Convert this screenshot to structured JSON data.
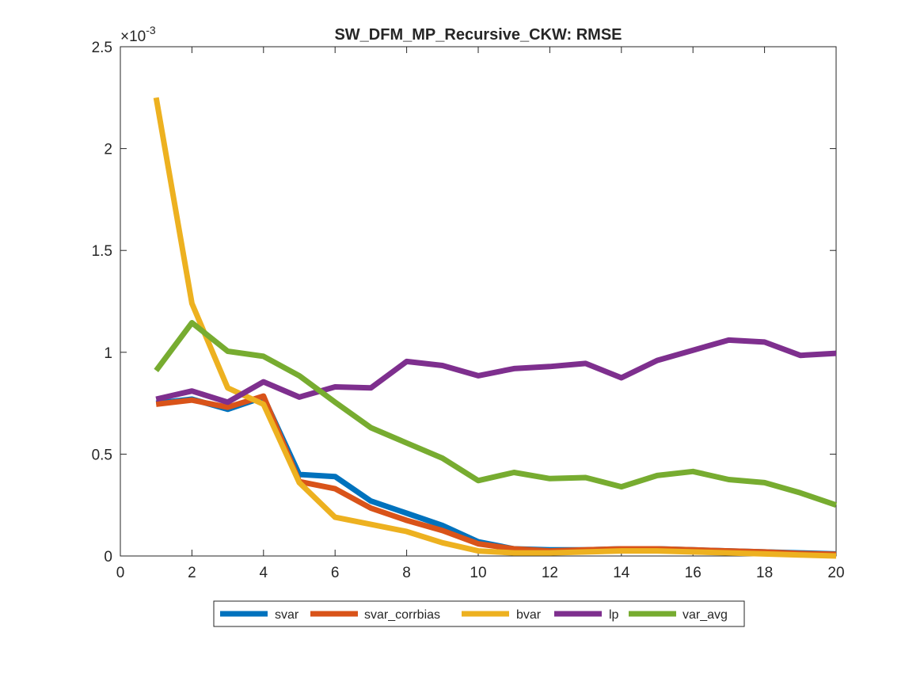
{
  "chart_data": {
    "type": "line",
    "title": "SW_DFM_MP_Recursive_CKW: RMSE",
    "xlabel": "",
    "ylabel": "",
    "xlim": [
      0,
      20
    ],
    "ylim": [
      0,
      2.5
    ],
    "y_exponent_label": "×10",
    "y_exponent_power": "-3",
    "x_ticks": [
      "0",
      "2",
      "4",
      "6",
      "8",
      "10",
      "12",
      "14",
      "16",
      "18",
      "20"
    ],
    "y_ticks": [
      "0",
      "0.5",
      "1",
      "1.5",
      "2",
      "2.5"
    ],
    "grid": false,
    "legend_position": "bottom-outside",
    "x": [
      1,
      2,
      3,
      4,
      5,
      6,
      7,
      8,
      9,
      10,
      11,
      12,
      13,
      14,
      15,
      16,
      17,
      18,
      19,
      20
    ],
    "series": [
      {
        "name": "svar",
        "color": "#0072BD",
        "values": [
          0.75,
          0.77,
          0.72,
          0.78,
          0.4,
          0.39,
          0.27,
          0.21,
          0.15,
          0.07,
          0.035,
          0.03,
          0.03,
          0.035,
          0.035,
          0.03,
          0.025,
          0.02,
          0.015,
          0.01
        ]
      },
      {
        "name": "svar_corrbias",
        "color": "#D95319",
        "values": [
          0.745,
          0.765,
          0.73,
          0.785,
          0.365,
          0.33,
          0.235,
          0.175,
          0.125,
          0.06,
          0.035,
          0.025,
          0.03,
          0.035,
          0.035,
          0.03,
          0.025,
          0.02,
          0.012,
          0.008
        ]
      },
      {
        "name": "bvar",
        "color": "#EDB120",
        "values": [
          2.25,
          1.24,
          0.825,
          0.745,
          0.36,
          0.19,
          0.155,
          0.12,
          0.065,
          0.025,
          0.015,
          0.015,
          0.02,
          0.025,
          0.025,
          0.02,
          0.015,
          0.01,
          0.005,
          0.0
        ]
      },
      {
        "name": "lp",
        "color": "#7E2F8E",
        "values": [
          0.77,
          0.81,
          0.755,
          0.855,
          0.78,
          0.83,
          0.825,
          0.955,
          0.935,
          0.885,
          0.92,
          0.93,
          0.945,
          0.875,
          0.96,
          1.01,
          1.06,
          1.05,
          0.985,
          0.995
        ]
      },
      {
        "name": "var_avg",
        "color": "#77AC30",
        "values": [
          0.91,
          1.145,
          1.005,
          0.98,
          0.885,
          0.755,
          0.63,
          0.555,
          0.48,
          0.37,
          0.41,
          0.38,
          0.385,
          0.34,
          0.395,
          0.415,
          0.375,
          0.36,
          0.31,
          0.25
        ]
      }
    ]
  }
}
